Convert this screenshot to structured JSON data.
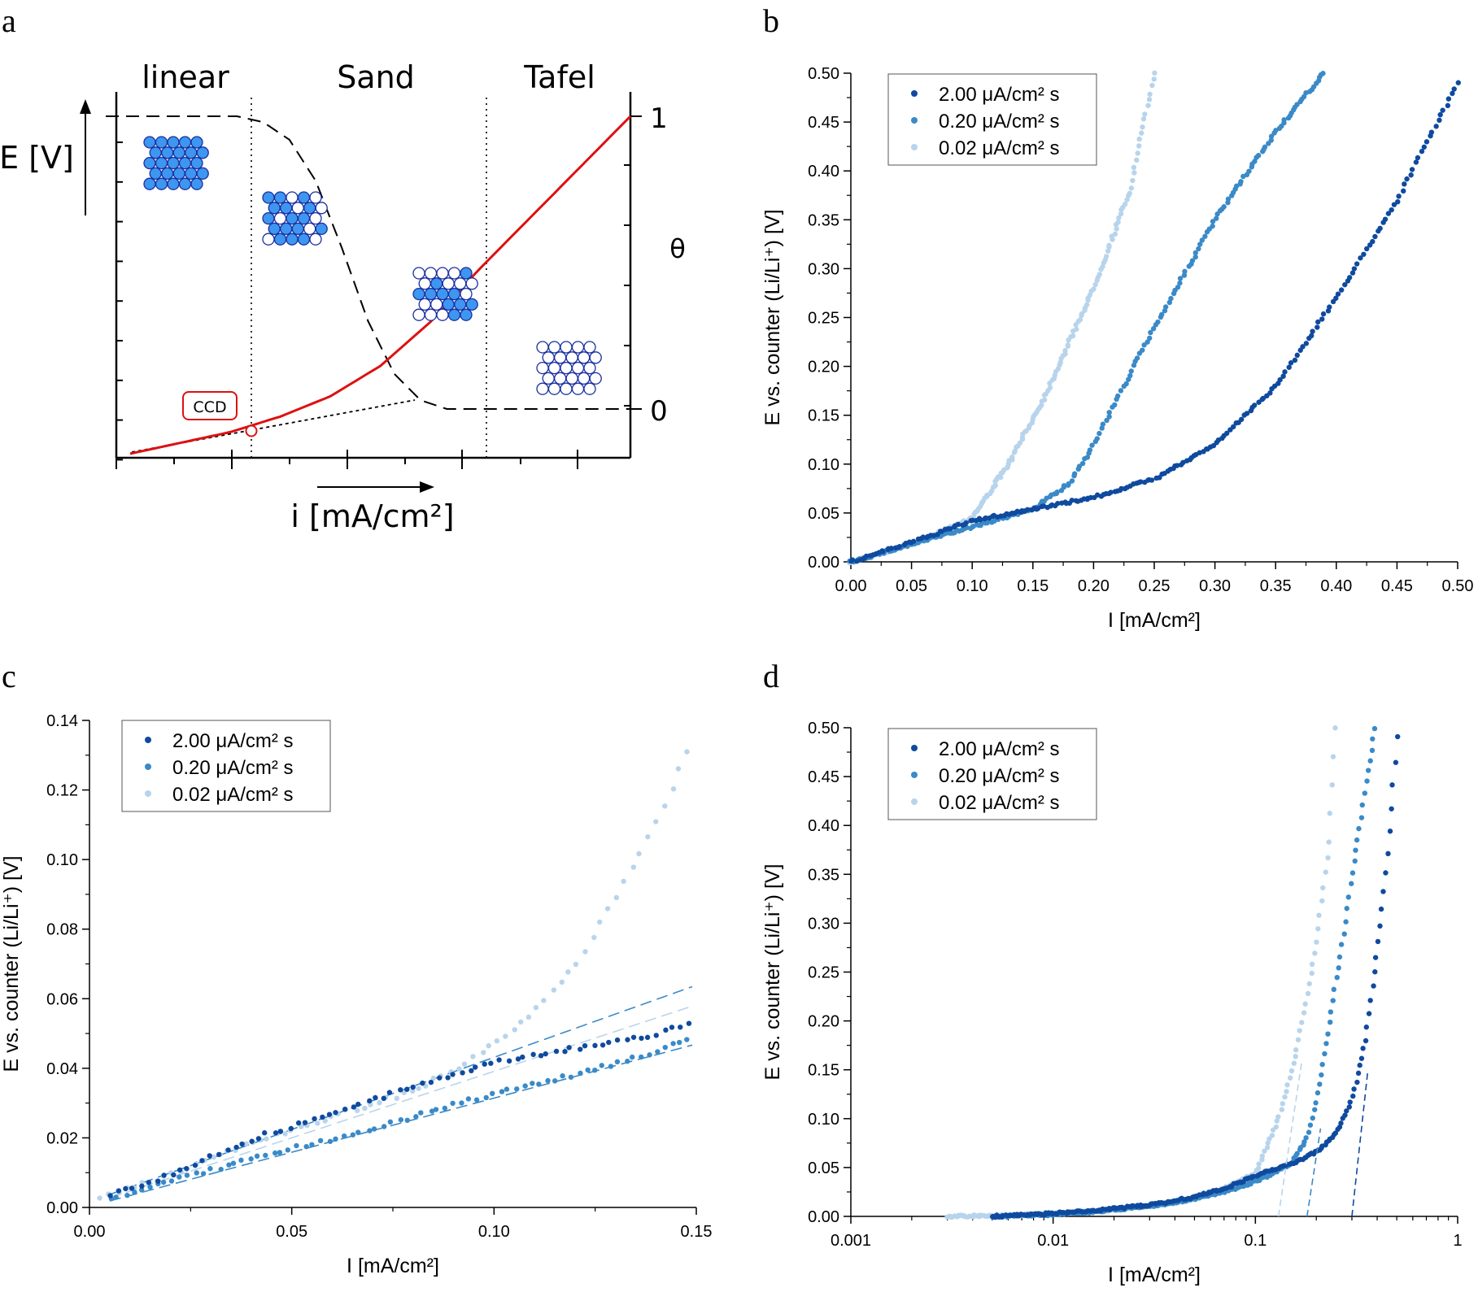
{
  "panel_labels": [
    "a",
    "b",
    "c",
    "d"
  ],
  "colors": {
    "dark": "#0f4a9e",
    "mid": "#3a8ac8",
    "light": "#b8d4ec",
    "red": "#dd1111",
    "atom_filled": "#3d96f0",
    "atom_empty": "#ffffff",
    "atom_edge": "#1a2fa0"
  },
  "chart_data": [
    {
      "id": "a",
      "type": "line",
      "regions": [
        "linear",
        "Sand",
        "Tafel"
      ],
      "ylabel": "E [V]",
      "xlabel": "i [mA/cm²]",
      "right_axis_label": "θ",
      "right_ticks": [
        "1",
        "0"
      ],
      "ccd_label": "CCD",
      "series": [
        {
          "kind": "potential",
          "color": "#dd1111",
          "style": "solid",
          "x": [
            0,
            0.1,
            0.2,
            0.3,
            0.4,
            0.5,
            0.6,
            0.7,
            0.8,
            0.9,
            1.0
          ],
          "y": [
            0,
            0.032,
            0.064,
            0.11,
            0.17,
            0.26,
            0.39,
            0.55,
            0.7,
            0.85,
            1.0
          ]
        },
        {
          "kind": "coverage",
          "color": "#000000",
          "style": "dashed",
          "x": [
            0,
            0.25,
            0.3,
            0.35,
            0.4,
            0.45,
            0.5,
            0.55,
            0.6,
            0.65,
            0.7,
            1.0
          ],
          "y": [
            1,
            1,
            0.98,
            0.92,
            0.78,
            0.55,
            0.3,
            0.12,
            0.03,
            0,
            0,
            0
          ]
        }
      ]
    },
    {
      "id": "b",
      "type": "scatter",
      "xlabel": "I [mA/cm²]",
      "ylabel": "E vs. counter (Li/Li⁺) [V]",
      "xlim": [
        0,
        0.5
      ],
      "ylim": [
        0,
        0.5
      ],
      "xticks": [
        "0.00",
        "0.05",
        "0.10",
        "0.15",
        "0.20",
        "0.25",
        "0.30",
        "0.35",
        "0.40",
        "0.45",
        "0.50"
      ],
      "yticks": [
        "0.00",
        "0.05",
        "0.10",
        "0.15",
        "0.20",
        "0.25",
        "0.30",
        "0.35",
        "0.40",
        "0.45",
        "0.50"
      ],
      "legend": [
        "2.00 μA/cm² s",
        "0.20 μA/cm² s",
        "0.02 μA/cm² s"
      ],
      "series": [
        {
          "name": "2.00 μA/cm² s",
          "x": [
            0,
            0.05,
            0.1,
            0.15,
            0.2,
            0.25,
            0.3,
            0.35,
            0.4,
            0.45,
            0.5
          ],
          "y": [
            0,
            0.02,
            0.042,
            0.054,
            0.066,
            0.085,
            0.12,
            0.18,
            0.27,
            0.37,
            0.49
          ]
        },
        {
          "name": "0.20 μA/cm² s",
          "x": [
            0,
            0.05,
            0.1,
            0.15,
            0.18,
            0.2,
            0.25,
            0.3,
            0.35,
            0.39
          ],
          "y": [
            0,
            0.018,
            0.036,
            0.054,
            0.08,
            0.12,
            0.24,
            0.35,
            0.44,
            0.5
          ]
        },
        {
          "name": "0.02 μA/cm² s",
          "x": [
            0,
            0.05,
            0.1,
            0.13,
            0.16,
            0.2,
            0.23,
            0.25
          ],
          "y": [
            0,
            0.018,
            0.045,
            0.1,
            0.17,
            0.28,
            0.38,
            0.5
          ]
        }
      ]
    },
    {
      "id": "c",
      "type": "scatter",
      "xlabel": "I [mA/cm²]",
      "ylabel": "E vs. counter (Li/Li⁺) [V]",
      "xlim": [
        0,
        0.15
      ],
      "ylim": [
        0,
        0.15
      ],
      "xticks": [
        "0.00",
        "0.05",
        "0.10",
        "0.15"
      ],
      "yticks": [
        "0.00",
        "0.02",
        "0.04",
        "0.06",
        "0.08",
        "0.10",
        "0.12",
        "0.14"
      ],
      "legend": [
        "2.00 μA/cm² s",
        "0.20 μA/cm² s",
        "0.02 μA/cm² s"
      ],
      "series": [
        {
          "name": "2.00 μA/cm² s",
          "x": [
            0.005,
            0.02,
            0.04,
            0.06,
            0.08,
            0.1,
            0.12,
            0.14,
            0.148
          ],
          "y": [
            0.004,
            0.01,
            0.021,
            0.029,
            0.037,
            0.045,
            0.049,
            0.053,
            0.057
          ]
        },
        {
          "name": "0.20 μA/cm² s",
          "x": [
            0.005,
            0.02,
            0.04,
            0.06,
            0.08,
            0.1,
            0.12,
            0.14,
            0.148
          ],
          "y": [
            0.003,
            0.008,
            0.015,
            0.021,
            0.028,
            0.035,
            0.041,
            0.048,
            0.052
          ]
        },
        {
          "name": "0.02 μA/cm² s",
          "x": [
            0.003,
            0.02,
            0.04,
            0.06,
            0.08,
            0.09,
            0.1,
            0.11,
            0.12,
            0.13,
            0.14,
            0.148
          ],
          "y": [
            0.003,
            0.01,
            0.02,
            0.028,
            0.036,
            0.042,
            0.05,
            0.06,
            0.074,
            0.095,
            0.118,
            0.14
          ]
        }
      ],
      "fits": [
        {
          "color": "mid",
          "x": [
            0.005,
            0.149
          ],
          "y": [
            0.004,
            0.068
          ]
        },
        {
          "color": "light",
          "x": [
            0.005,
            0.149
          ],
          "y": [
            0.003,
            0.062
          ]
        },
        {
          "color": "mid",
          "x": [
            0.005,
            0.149
          ],
          "y": [
            0.002,
            0.05
          ]
        }
      ]
    },
    {
      "id": "d",
      "type": "scatter",
      "xscale": "log",
      "xlabel": "I [mA/cm²]",
      "ylabel": "E vs. counter (Li/Li⁺) [V]",
      "xlim": [
        0.001,
        1
      ],
      "ylim": [
        0,
        0.5
      ],
      "xticks": [
        "0.001",
        "0.01",
        "0.1",
        "1"
      ],
      "yticks": [
        "0.00",
        "0.05",
        "0.10",
        "0.15",
        "0.20",
        "0.25",
        "0.30",
        "0.35",
        "0.40",
        "0.45",
        "0.50"
      ],
      "legend": [
        "2.00 μA/cm² s",
        "0.20 μA/cm² s",
        "0.02 μA/cm² s"
      ],
      "series": [
        {
          "name": "2.00 μA/cm² s",
          "x": [
            0.005,
            0.01,
            0.02,
            0.05,
            0.1,
            0.15,
            0.2,
            0.25,
            0.3,
            0.35,
            0.4,
            0.45,
            0.5
          ],
          "y": [
            0,
            0.003,
            0.008,
            0.02,
            0.042,
            0.054,
            0.066,
            0.085,
            0.12,
            0.18,
            0.27,
            0.37,
            0.49
          ]
        },
        {
          "name": "0.20 μA/cm² s",
          "x": [
            0.005,
            0.01,
            0.02,
            0.05,
            0.1,
            0.15,
            0.18,
            0.2,
            0.25,
            0.3,
            0.35,
            0.39
          ],
          "y": [
            0,
            0.002,
            0.007,
            0.018,
            0.036,
            0.054,
            0.08,
            0.12,
            0.24,
            0.35,
            0.44,
            0.5
          ]
        },
        {
          "name": "0.02 μA/cm² s",
          "x": [
            0.003,
            0.008,
            0.02,
            0.05,
            0.1,
            0.13,
            0.16,
            0.2,
            0.23,
            0.25
          ],
          "y": [
            0,
            0.002,
            0.007,
            0.018,
            0.045,
            0.1,
            0.17,
            0.28,
            0.38,
            0.5
          ]
        }
      ],
      "tangents": [
        {
          "color": "light",
          "x": [
            0.13,
            0.17
          ],
          "y": [
            0,
            0.16
          ]
        },
        {
          "color": "mid",
          "x": [
            0.18,
            0.21
          ],
          "y": [
            0,
            0.09
          ]
        },
        {
          "color": "dark",
          "x": [
            0.3,
            0.36
          ],
          "y": [
            0,
            0.15
          ]
        }
      ]
    }
  ]
}
